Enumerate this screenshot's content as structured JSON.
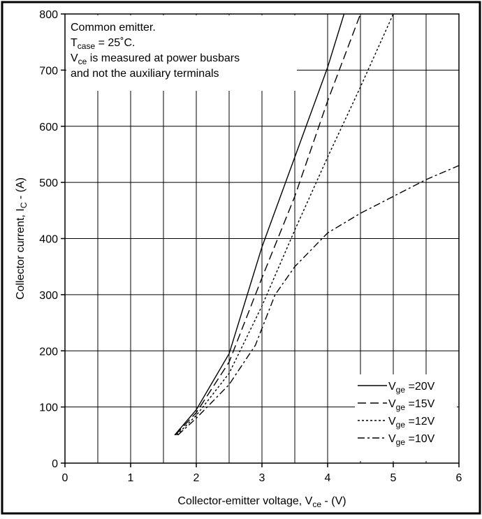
{
  "annotation": {
    "line1": "Common emitter.",
    "line2_main": "T",
    "line2_sub": "case",
    "line2_rest": " = 25˚C.",
    "line3_main": "V",
    "line3_sub": "ce",
    "line3_rest": " is measured at power busbars",
    "line4": "and not the auxiliary terminals"
  },
  "axes": {
    "x_label_main": "Collector-emitter voltage, V",
    "x_label_sub": "ce",
    "x_label_rest": " - (V)",
    "y_label_main": "Collector current, I",
    "y_label_sub": "C",
    "y_label_rest": " - (A)"
  },
  "chart_data": {
    "type": "line",
    "xlim": [
      0,
      6
    ],
    "ylim": [
      0,
      800
    ],
    "x_ticks": [
      0,
      1,
      2,
      3,
      4,
      5,
      6
    ],
    "y_ticks": [
      0,
      100,
      200,
      300,
      400,
      500,
      600,
      700,
      800
    ],
    "grid": true,
    "legend_position": "bottom-right",
    "series": [
      {
        "name_main": "V",
        "name_sub": "ge",
        "name_rest": " =20V",
        "dash": "solid",
        "x": [
          1.67,
          2.0,
          2.5,
          3.0,
          3.5,
          4.0,
          4.25
        ],
        "y": [
          50,
          95,
          195,
          385,
          545,
          705,
          800
        ]
      },
      {
        "name_main": "V",
        "name_sub": "ge",
        "name_rest": " =15V",
        "dash": "dash",
        "x": [
          1.68,
          2.0,
          2.5,
          3.0,
          3.5,
          4.0,
          4.5
        ],
        "y": [
          50,
          90,
          180,
          330,
          475,
          645,
          800
        ]
      },
      {
        "name_main": "V",
        "name_sub": "ge",
        "name_rest": " =12V",
        "dash": "dot",
        "x": [
          1.7,
          2.0,
          2.5,
          3.0,
          3.5,
          4.0,
          4.5,
          5.0
        ],
        "y": [
          50,
          85,
          160,
          280,
          415,
          545,
          670,
          800
        ]
      },
      {
        "name_main": "V",
        "name_sub": "ge",
        "name_rest": " =10V",
        "dash": "dashdot",
        "x": [
          1.72,
          2.0,
          2.5,
          2.9,
          3.2,
          3.5,
          4.0,
          4.5,
          5.0,
          5.5,
          6.0
        ],
        "y": [
          50,
          80,
          140,
          210,
          300,
          350,
          410,
          445,
          475,
          505,
          530
        ]
      }
    ]
  }
}
